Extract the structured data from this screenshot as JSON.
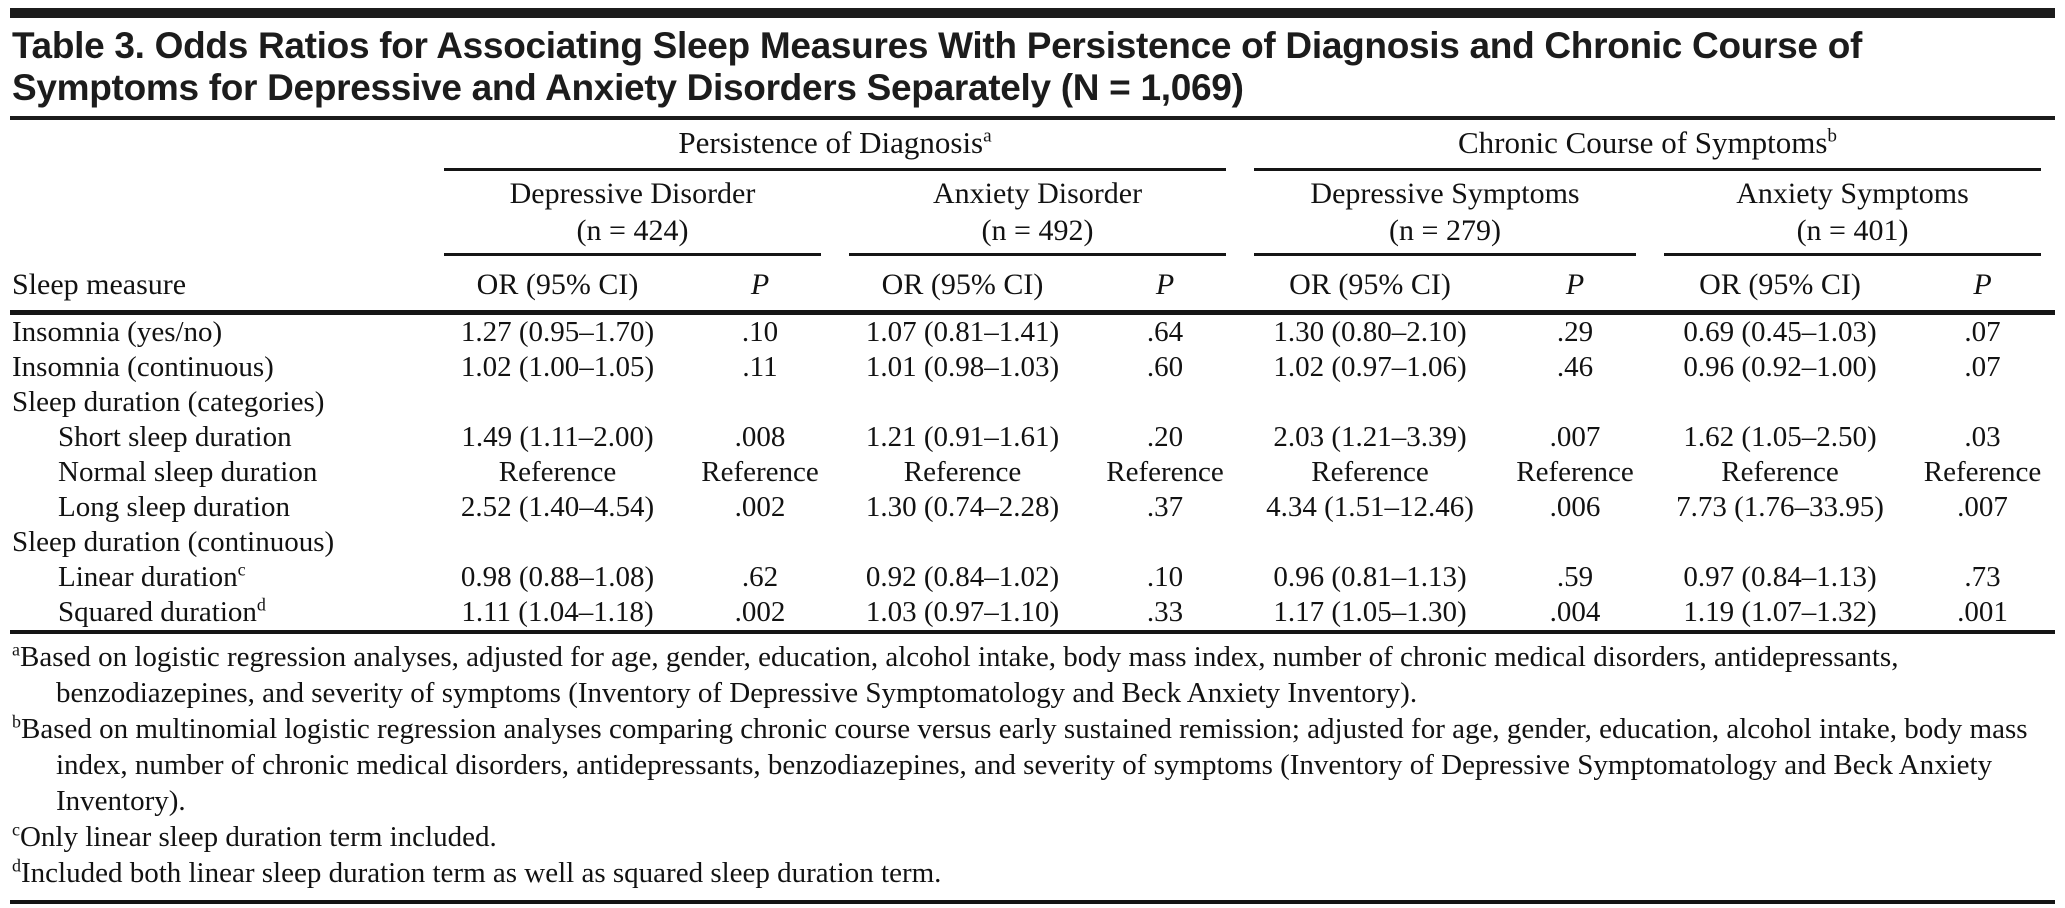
{
  "page": {
    "title": "Table 3. Odds Ratios for Associating Sleep Measures With Persistence of Diagnosis and Chronic Course of Symptoms for Depressive and Anxiety Disorders Separately (N = 1,069)"
  },
  "table": {
    "stub_header": "Sleep measure",
    "col_headers": {
      "or": "OR (95% CI)",
      "p": "P"
    },
    "groups": [
      {
        "label": "Persistence of Diagnosis",
        "mark": "a",
        "subgroups": [
          {
            "name": "Depressive Disorder",
            "n": "(n = 424)"
          },
          {
            "name": "Anxiety Disorder",
            "n": "(n = 492)"
          }
        ]
      },
      {
        "label": "Chronic Course of Symptoms",
        "mark": "b",
        "subgroups": [
          {
            "name": "Depressive Symptoms",
            "n": "(n = 279)"
          },
          {
            "name": "Anxiety Symptoms",
            "n": "(n = 401)"
          }
        ]
      }
    ],
    "rows": [
      {
        "label": "Insomnia (yes/no)",
        "cells": [
          "1.27 (0.95–1.70)",
          ".10",
          "1.07 (0.81–1.41)",
          ".64",
          "1.30 (0.80–2.10)",
          ".29",
          "0.69 (0.45–1.03)",
          ".07"
        ]
      },
      {
        "label": "Insomnia (continuous)",
        "cells": [
          "1.02 (1.00–1.05)",
          ".11",
          "1.01 (0.98–1.03)",
          ".60",
          "1.02 (0.97–1.06)",
          ".46",
          "0.96 (0.92–1.00)",
          ".07"
        ]
      },
      {
        "label": "Sleep duration (categories)",
        "section": true,
        "cells": []
      },
      {
        "label": "Short sleep duration",
        "cells": [
          "1.49 (1.11–2.00)",
          ".008",
          "1.21 (0.91–1.61)",
          ".20",
          "2.03 (1.21–3.39)",
          ".007",
          "1.62 (1.05–2.50)",
          ".03"
        ]
      },
      {
        "label": "Normal sleep duration",
        "cells": [
          "Reference",
          "Reference",
          "Reference",
          "Reference",
          "Reference",
          "Reference",
          "Reference",
          "Reference"
        ]
      },
      {
        "label": "Long sleep duration",
        "cells": [
          "2.52 (1.40–4.54)",
          ".002",
          "1.30 (0.74–2.28)",
          ".37",
          "4.34 (1.51–12.46)",
          ".006",
          "7.73 (1.76–33.95)",
          ".007"
        ]
      },
      {
        "label": "Sleep duration (continuous)",
        "section": true,
        "cells": []
      },
      {
        "label": "Linear duration",
        "mark": "c",
        "cells": [
          "0.98 (0.88–1.08)",
          ".62",
          "0.92 (0.84–1.02)",
          ".10",
          "0.96 (0.81–1.13)",
          ".59",
          "0.97 (0.84–1.13)",
          ".73"
        ]
      },
      {
        "label": "Squared duration",
        "mark": "d",
        "cells": [
          "1.11 (1.04–1.18)",
          ".002",
          "1.03 (0.97–1.10)",
          ".33",
          "1.17 (1.05–1.30)",
          ".004",
          "1.19 (1.07–1.32)",
          ".001"
        ]
      }
    ],
    "footnotes": [
      {
        "mark": "a",
        "text": "Based on logistic regression analyses, adjusted for age, gender, education, alcohol intake, body mass index, number of chronic medical disorders, antidepressants, benzodiazepines, and severity of symptoms (Inventory of Depressive Symptomatology and Beck Anxiety Inventory)."
      },
      {
        "mark": "b",
        "text": "Based on multinomial logistic regression analyses comparing chronic course versus early sustained remission; adjusted for age, gender, education, alcohol intake, body mass index, number of chronic medical disorders, antidepressants, benzodiazepines, and severity of symptoms (Inventory of Depressive Symptomatology and Beck Anxiety Inventory)."
      },
      {
        "mark": "c",
        "text": "Only linear sleep duration term included."
      },
      {
        "mark": "d",
        "text": "Included both linear sleep duration term as well as squared sleep duration term."
      }
    ]
  }
}
